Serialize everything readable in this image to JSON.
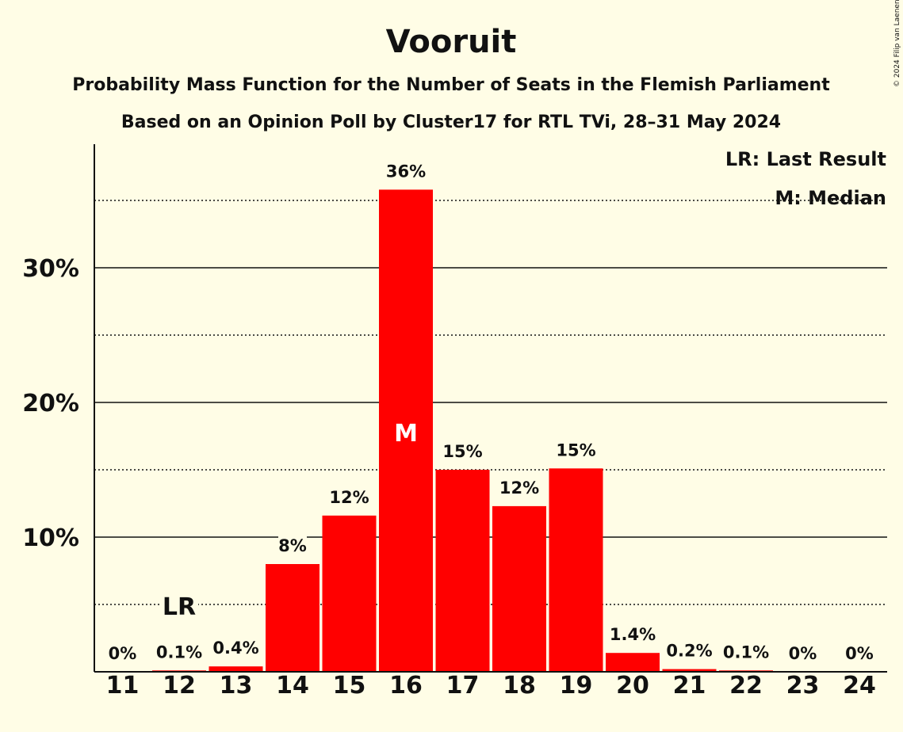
{
  "chart_data": {
    "type": "bar",
    "title": "Vooruit",
    "subtitle_1": "Probability Mass Function for the Number of Seats in the Flemish Parliament",
    "subtitle_2": "Based on an Opinion Poll by Cluster17 for RTL TVi, 28–31 May 2024",
    "categories": [
      "11",
      "12",
      "13",
      "14",
      "15",
      "16",
      "17",
      "18",
      "19",
      "20",
      "21",
      "22",
      "23",
      "24"
    ],
    "values": [
      0,
      0.1,
      0.4,
      8,
      11.6,
      35.8,
      15,
      12.3,
      15.1,
      1.4,
      0.2,
      0.1,
      0,
      0
    ],
    "data_labels": [
      "0%",
      "0.1%",
      "0.4%",
      "8%",
      "12%",
      "36%",
      "15%",
      "12%",
      "15%",
      "1.4%",
      "0.2%",
      "0.1%",
      "0%",
      "0%"
    ],
    "ylim": [
      0,
      39
    ],
    "yticks": [
      10,
      20,
      30
    ],
    "ytick_labels": [
      "10%",
      "20%",
      "30%"
    ],
    "minor_gridlines": [
      5,
      15,
      25,
      35
    ],
    "bar_color": "#ff0000",
    "last_result": {
      "category": "12",
      "label": "LR"
    },
    "median": {
      "category": "16",
      "label": "M"
    },
    "legend": {
      "placement": "top-right",
      "lr_text": "LR: Last Result",
      "m_text": "M: Median"
    }
  },
  "copyright": "© 2024 Filip van Laenen"
}
